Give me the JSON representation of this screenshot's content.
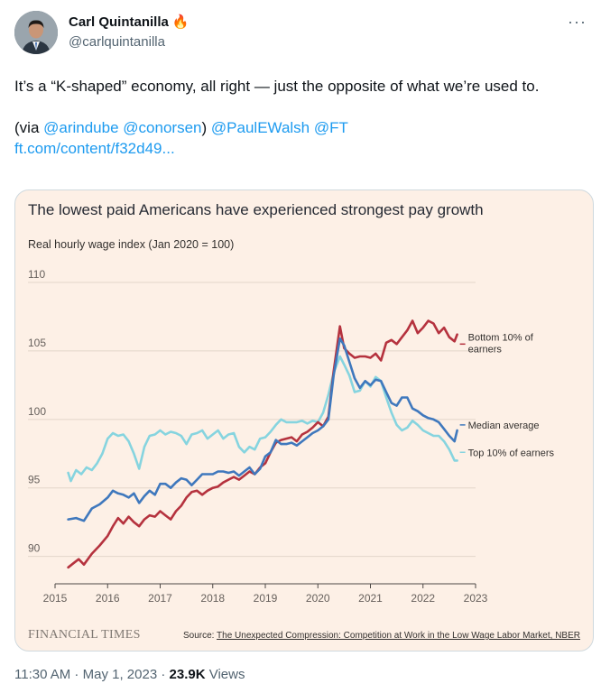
{
  "author": {
    "name": "Carl Quintanilla",
    "emoji": "🔥",
    "handle": "@carlquintanilla"
  },
  "tweet": {
    "line1": "It’s a “K-shaped” economy, all right — just the opposite of what we’re used to.",
    "via_prefix": "(via ",
    "mention1": "@arindube",
    "mention2": "@conorsen",
    "via_suffix": ")",
    "mention3": "@PaulEWalsh",
    "mention4": "@FT",
    "url": "ft.com/content/f32d49..."
  },
  "meta": {
    "time": "11:30 AM",
    "dot1": " · ",
    "date": "May 1, 2023",
    "dot2": " · ",
    "views_count": "23.9K",
    "views_label": "Views"
  },
  "colors": {
    "bottom": "#b5323e",
    "median": "#3f78bd",
    "top": "#86d4df"
  },
  "chart_data": {
    "type": "line",
    "title": "The lowest paid Americans have experienced strongest pay growth",
    "ylabel": "Real hourly wage index (Jan 2020 = 100)",
    "xlim": [
      2015,
      2023
    ],
    "ylim": [
      88,
      110
    ],
    "xticks": [
      2015,
      2016,
      2017,
      2018,
      2019,
      2020,
      2021,
      2022,
      2023
    ],
    "yticks": [
      90,
      95,
      100,
      105,
      110
    ],
    "grid": true,
    "source_prefix": "Source: ",
    "source_title": "The Unexpected Compression: Competition at Work in the Low Wage Labor Market, NBER",
    "publisher": "FINANCIAL TIMES",
    "series": [
      {
        "name": "Bottom 10% of earners",
        "label_line1": "Bottom 10% of",
        "label_line2": "earners",
        "color": "#b5323e",
        "x": [
          2015.25,
          2015.35,
          2015.45,
          2015.55,
          2015.7,
          2015.85,
          2016.0,
          2016.1,
          2016.2,
          2016.3,
          2016.4,
          2016.5,
          2016.6,
          2016.7,
          2016.8,
          2016.9,
          2017.0,
          2017.1,
          2017.2,
          2017.3,
          2017.4,
          2017.5,
          2017.6,
          2017.7,
          2017.8,
          2017.9,
          2018.0,
          2018.1,
          2018.2,
          2018.3,
          2018.4,
          2018.5,
          2018.6,
          2018.7,
          2018.8,
          2018.9,
          2019.0,
          2019.1,
          2019.2,
          2019.3,
          2019.4,
          2019.5,
          2019.6,
          2019.7,
          2019.8,
          2019.9,
          2020.0,
          2020.1,
          2020.2,
          2020.3,
          2020.42,
          2020.5,
          2020.6,
          2020.7,
          2020.8,
          2020.9,
          2021.0,
          2021.1,
          2021.2,
          2021.3,
          2021.4,
          2021.5,
          2021.6,
          2021.7,
          2021.8,
          2021.9,
          2022.0,
          2022.1,
          2022.2,
          2022.3,
          2022.4,
          2022.5,
          2022.6,
          2022.65
        ],
        "y": [
          89.2,
          89.5,
          89.8,
          89.4,
          90.2,
          90.8,
          91.5,
          92.2,
          92.8,
          92.4,
          92.9,
          92.5,
          92.2,
          92.7,
          93.0,
          92.9,
          93.3,
          93.0,
          92.7,
          93.3,
          93.7,
          94.3,
          94.7,
          94.8,
          94.5,
          94.8,
          95.0,
          95.1,
          95.4,
          95.6,
          95.8,
          95.6,
          95.9,
          96.2,
          96.0,
          96.5,
          96.8,
          97.6,
          98.3,
          98.5,
          98.6,
          98.7,
          98.4,
          98.9,
          99.1,
          99.4,
          99.8,
          99.5,
          100.2,
          103.5,
          106.8,
          105.2,
          104.8,
          104.5,
          104.6,
          104.6,
          104.5,
          104.8,
          104.3,
          105.6,
          105.8,
          105.5,
          106.0,
          106.5,
          107.2,
          106.3,
          106.7,
          107.2,
          107.0,
          106.3,
          106.7,
          106.0,
          105.7,
          106.2
        ]
      },
      {
        "name": "Median average",
        "label_line1": "Median average",
        "label_line2": "",
        "color": "#3f78bd",
        "x": [
          2015.25,
          2015.4,
          2015.55,
          2015.7,
          2015.85,
          2016.0,
          2016.1,
          2016.2,
          2016.3,
          2016.4,
          2016.5,
          2016.6,
          2016.7,
          2016.8,
          2016.9,
          2017.0,
          2017.1,
          2017.2,
          2017.3,
          2017.4,
          2017.5,
          2017.6,
          2017.7,
          2017.8,
          2017.9,
          2018.0,
          2018.1,
          2018.2,
          2018.3,
          2018.4,
          2018.5,
          2018.6,
          2018.7,
          2018.8,
          2018.9,
          2019.0,
          2019.1,
          2019.2,
          2019.3,
          2019.4,
          2019.5,
          2019.6,
          2019.7,
          2019.8,
          2019.9,
          2020.0,
          2020.1,
          2020.2,
          2020.3,
          2020.42,
          2020.5,
          2020.6,
          2020.7,
          2020.8,
          2020.9,
          2021.0,
          2021.1,
          2021.2,
          2021.3,
          2021.4,
          2021.5,
          2021.6,
          2021.7,
          2021.8,
          2021.9,
          2022.0,
          2022.1,
          2022.2,
          2022.3,
          2022.4,
          2022.5,
          2022.6,
          2022.65
        ],
        "y": [
          92.7,
          92.8,
          92.6,
          93.5,
          93.8,
          94.3,
          94.8,
          94.6,
          94.5,
          94.3,
          94.6,
          93.9,
          94.4,
          94.8,
          94.5,
          95.3,
          95.3,
          95.0,
          95.4,
          95.7,
          95.6,
          95.2,
          95.6,
          96.0,
          96.0,
          96.0,
          96.2,
          96.2,
          96.1,
          96.2,
          95.9,
          96.2,
          96.5,
          96.0,
          96.4,
          97.3,
          97.6,
          98.5,
          98.2,
          98.2,
          98.3,
          98.1,
          98.4,
          98.7,
          99.0,
          99.2,
          99.5,
          100.0,
          103.2,
          105.9,
          105.4,
          104.2,
          103.0,
          102.3,
          102.8,
          102.5,
          102.9,
          102.8,
          102.0,
          101.2,
          101.0,
          101.6,
          101.6,
          100.8,
          100.6,
          100.3,
          100.1,
          100.0,
          99.8,
          99.3,
          98.8,
          98.4,
          99.2
        ]
      },
      {
        "name": "Top 10% of earners",
        "label_line1": "Top 10% of earners",
        "label_line2": "",
        "color": "#86d4df",
        "x": [
          2015.25,
          2015.3,
          2015.4,
          2015.5,
          2015.6,
          2015.7,
          2015.8,
          2015.9,
          2016.0,
          2016.1,
          2016.2,
          2016.3,
          2016.4,
          2016.5,
          2016.6,
          2016.7,
          2016.8,
          2016.9,
          2017.0,
          2017.1,
          2017.2,
          2017.3,
          2017.4,
          2017.5,
          2017.6,
          2017.7,
          2017.8,
          2017.9,
          2018.0,
          2018.1,
          2018.2,
          2018.3,
          2018.4,
          2018.5,
          2018.6,
          2018.7,
          2018.8,
          2018.9,
          2019.0,
          2019.1,
          2019.2,
          2019.3,
          2019.4,
          2019.5,
          2019.6,
          2019.7,
          2019.8,
          2019.9,
          2020.0,
          2020.1,
          2020.2,
          2020.3,
          2020.42,
          2020.5,
          2020.6,
          2020.7,
          2020.8,
          2020.9,
          2021.0,
          2021.1,
          2021.2,
          2021.3,
          2021.4,
          2021.5,
          2021.6,
          2021.7,
          2021.8,
          2021.9,
          2022.0,
          2022.1,
          2022.2,
          2022.3,
          2022.4,
          2022.5,
          2022.6,
          2022.65
        ],
        "y": [
          96.1,
          95.5,
          96.3,
          96.0,
          96.5,
          96.3,
          96.8,
          97.5,
          98.6,
          99.0,
          98.8,
          98.9,
          98.4,
          97.5,
          96.4,
          98.0,
          98.8,
          98.9,
          99.2,
          98.9,
          99.1,
          99.0,
          98.8,
          98.2,
          98.9,
          99.0,
          99.2,
          98.6,
          98.9,
          99.2,
          98.6,
          98.9,
          99.0,
          98.0,
          97.6,
          98.0,
          97.8,
          98.6,
          98.7,
          99.1,
          99.6,
          100.0,
          99.8,
          99.8,
          99.8,
          99.9,
          99.7,
          99.9,
          99.8,
          100.5,
          101.8,
          103.4,
          104.6,
          104.0,
          103.2,
          102.0,
          102.1,
          102.8,
          102.4,
          103.1,
          102.8,
          101.6,
          100.5,
          99.6,
          99.2,
          99.4,
          99.9,
          99.6,
          99.2,
          99.0,
          98.8,
          98.8,
          98.4,
          97.8,
          97.0,
          97.0
        ]
      }
    ]
  }
}
